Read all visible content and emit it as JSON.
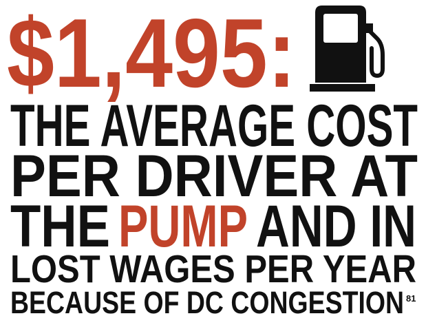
{
  "headline": "$1,495:",
  "lines": [
    [
      "THE AVERAGE COST"
    ],
    [
      "PER DRIVER AT"
    ],
    [
      "THE",
      "PUMP",
      "AND IN"
    ],
    [
      "LOST WAGES PER YEAR"
    ],
    [
      "BECAUSE OF DC CONGESTION"
    ]
  ],
  "footnote": "81"
}
